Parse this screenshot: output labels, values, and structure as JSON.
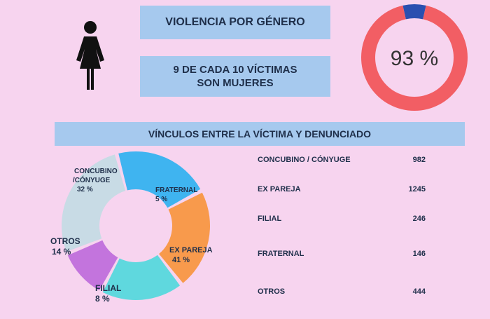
{
  "header": {
    "title": "VIOLENCIA POR GÉNERO",
    "subtitle_line1": "9 DE CADA 10 VÍCTIMAS",
    "subtitle_line2": "SON MUJERES"
  },
  "icons": {
    "woman": "woman-icon"
  },
  "colors": {
    "background": "#f7d4ef",
    "box": "#a6c9ee",
    "donut_main": "#f25e64",
    "donut_rest": "#2a4fb0",
    "concubino": "#c8dbe5",
    "fraternal": "#3fb4f0",
    "ex_pareja": "#f89a4c",
    "filial": "#5fd8de",
    "otros": "#c374dd"
  },
  "donut": {
    "value": 93,
    "label": "93 %"
  },
  "section": {
    "header": "VÍNCULOS ENTRE LA VÍCTIMA Y DENUNCIADO"
  },
  "chart_data": {
    "type": "pie",
    "categories": [
      "CONCUBINO / CÓNYUGE",
      "EX PAREJA",
      "FILIAL",
      "FRATERNAL",
      "OTROS"
    ],
    "values": [
      982,
      1245,
      246,
      146,
      444
    ],
    "slices": [
      {
        "key": "concubino",
        "label1": "CONCUBINO",
        "label2": "/CÓNYUGE",
        "pct_text": "32 %",
        "pct": 32
      },
      {
        "key": "fraternal",
        "label1": "FRATERNAL",
        "label2": "",
        "pct_text": "5 %",
        "pct": 5
      },
      {
        "key": "ex_pareja",
        "label1": "EX PAREJA",
        "label2": "",
        "pct_text": "41 %",
        "pct": 41
      },
      {
        "key": "filial",
        "label1": "FILIAL",
        "label2": "",
        "pct_text": "8 %",
        "pct": 8
      },
      {
        "key": "otros",
        "label1": "OTROS",
        "label2": "",
        "pct_text": "14 %",
        "pct": 14
      }
    ]
  },
  "legend": {
    "rows": [
      {
        "label": "CONCUBINO / CÓNYUGE",
        "value": "982"
      },
      {
        "label": "EX PAREJA",
        "value": "1245"
      },
      {
        "label": "FILIAL",
        "value": "246"
      },
      {
        "label": "FRATERNAL",
        "value": "146"
      },
      {
        "label": "OTROS",
        "value": "444"
      }
    ]
  }
}
